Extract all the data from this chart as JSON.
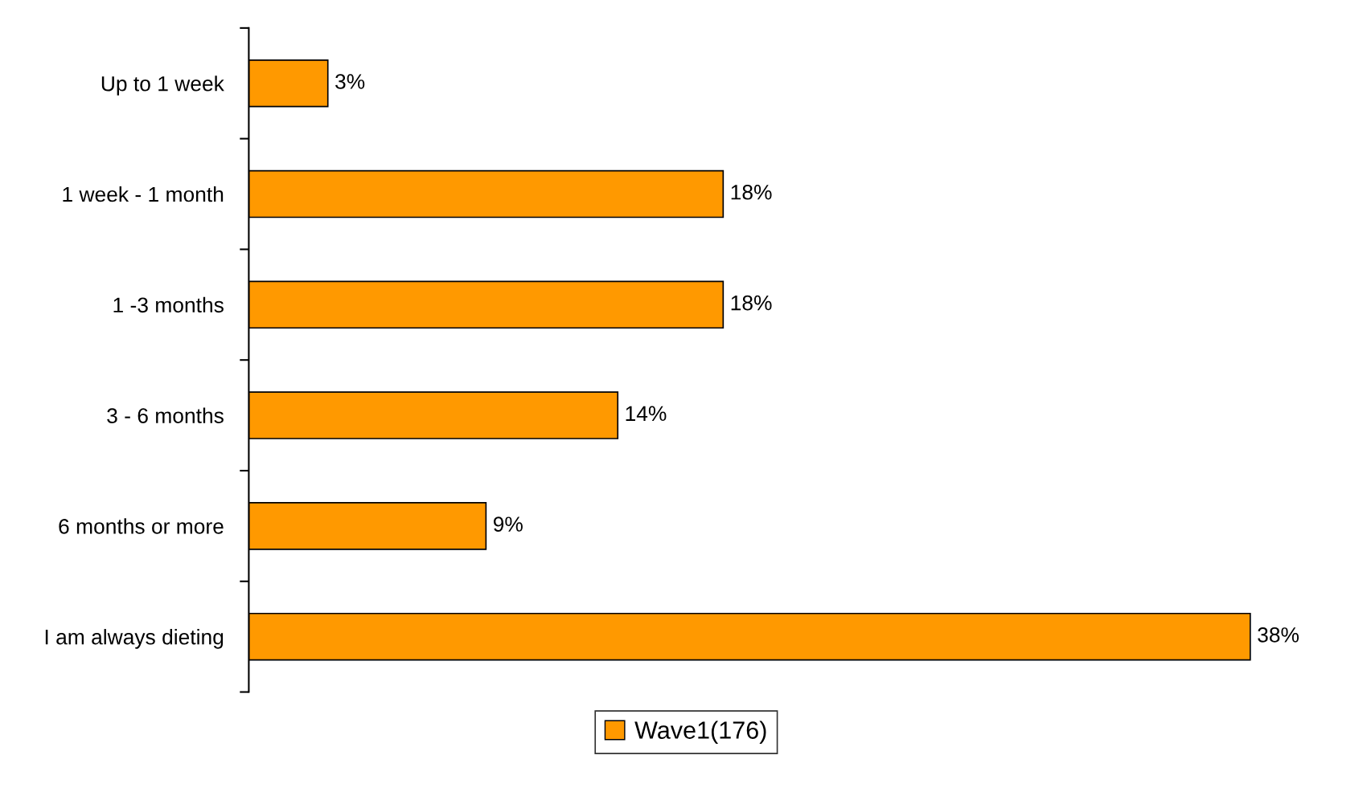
{
  "chart_data": {
    "type": "bar",
    "orientation": "horizontal",
    "categories": [
      "Up to 1 week",
      "1 week - 1 month",
      "1 -3 months",
      "3 - 6 months",
      "6 months or more",
      "I am always dieting"
    ],
    "series": [
      {
        "name": "Wave1(176)",
        "color": "#ff9900",
        "values": [
          3,
          18,
          18,
          14,
          9,
          38
        ],
        "value_labels": [
          "3%",
          "18%",
          "18%",
          "14%",
          "9%",
          "38%"
        ]
      }
    ],
    "legend": "bottom",
    "grid": false
  }
}
